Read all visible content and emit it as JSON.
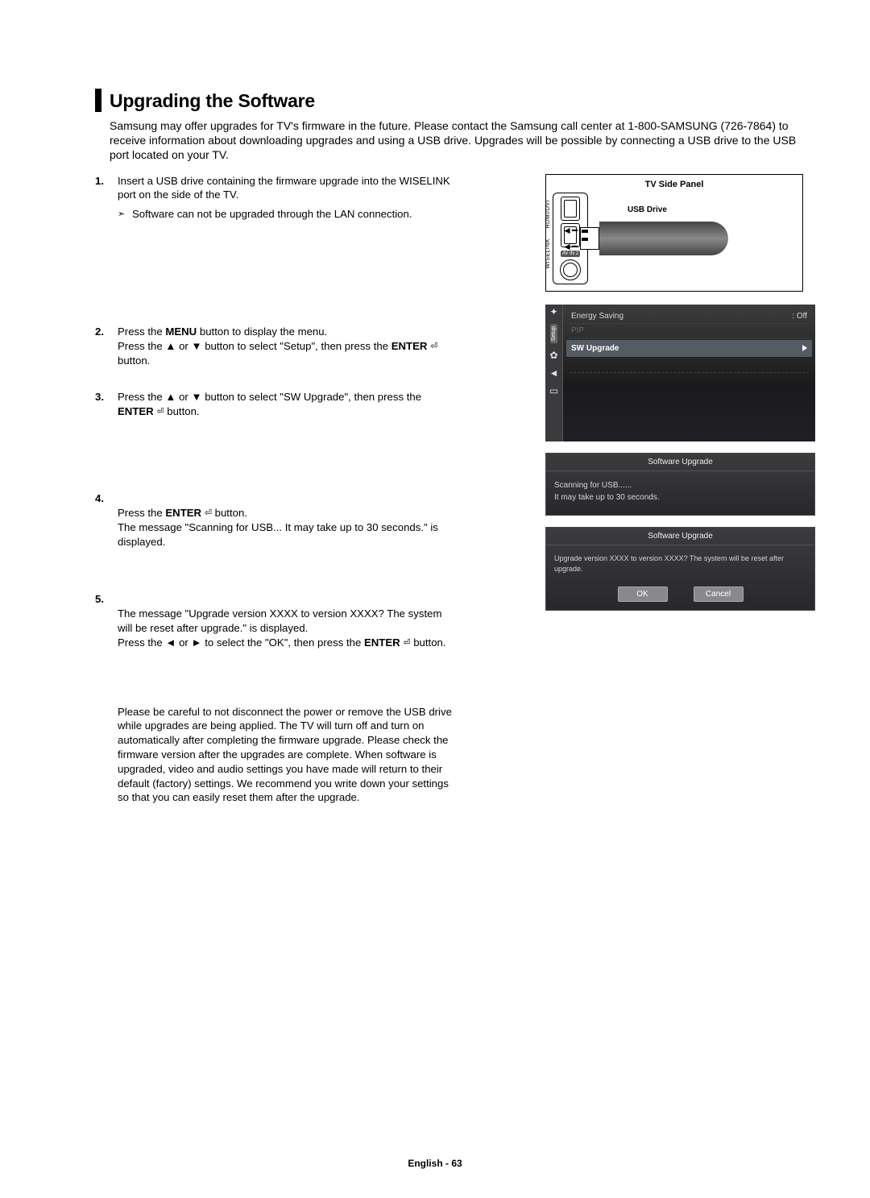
{
  "heading": "Upgrading the Software",
  "intro": "Samsung may offer upgrades for TV's firmware in the future. Please contact the Samsung call center at 1-800-SAMSUNG (726-7864) to receive information about downloading upgrades and using a USB drive. Upgrades will be possible by connecting a USB drive to the USB port located on your TV.",
  "steps": {
    "s1_num": "1.",
    "s1_a": "Insert a USB drive containing the firmware upgrade into the WISELINK port on the side of the TV.",
    "s1_note": "Software can not be upgraded through the LAN connection.",
    "s2_num": "2.",
    "s2_a": "Press the ",
    "s2_menu": "MENU",
    "s2_b": " button to display the menu.\nPress the ▲ or ▼ button to select \"Setup\", then press the ",
    "s2_enter": "ENTER",
    "s2_c": " button.",
    "s3_num": "3.",
    "s3_a": "Press the ▲ or ▼ button to select \"SW Upgrade\", then press the ",
    "s3_enter": "ENTER",
    "s3_b": " button.",
    "s4_num": "4.",
    "s4_a": "Press the ",
    "s4_enter": "ENTER",
    "s4_b": " button.\nThe message \"Scanning for USB... It may take up to 30 seconds.\" is displayed.",
    "s5_num": "5.",
    "s5_a": "The message \"Upgrade version XXXX to version XXXX? The system will be reset after upgrade.\" is displayed.\nPress the ◄ or ► to select the \"OK\", then press the ",
    "s5_enter": "ENTER",
    "s5_b": " button."
  },
  "closing": "Please be careful to not disconnect the power or remove the USB drive while upgrades are being applied. The TV will turn off and turn on automatically after completing the firmware upgrade. Please check the firmware version after the upgrades are complete. When software is upgraded, video and audio settings you have made will return to their default (factory) settings. We recommend you write down your settings so that you can easily reset them after the upgrade.",
  "fig1": {
    "title": "TV Side Panel",
    "usb_label": "USB Drive",
    "port_label_top": "HDMI/DVI",
    "port_label_mid": "WISELINK",
    "avin": "AV IN 2"
  },
  "fig2": {
    "sidebar_tab": "Setup",
    "row_energy": "Energy Saving",
    "row_energy_val": ": Off",
    "row_pip": "PIP",
    "row_sel": "SW Upgrade"
  },
  "fig3": {
    "title": "Software Upgrade",
    "line1": "Scanning for USB......",
    "line2": "It may take up to 30 seconds."
  },
  "fig4": {
    "title": "Software Upgrade",
    "body": "Upgrade version XXXX to version XXXX? The system will be reset after upgrade.",
    "ok": "OK",
    "cancel": "Cancel"
  },
  "footer": "English - 63",
  "enter_glyph": "⏎"
}
